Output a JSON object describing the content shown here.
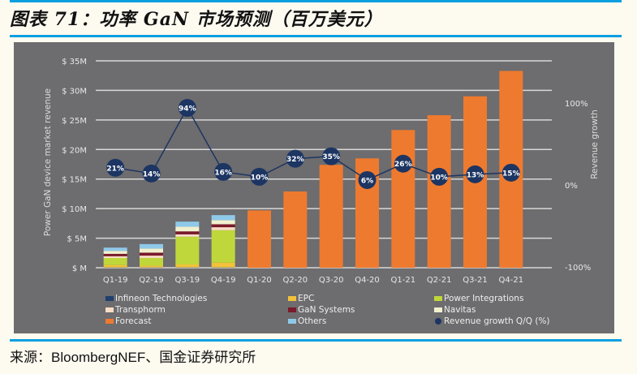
{
  "title": "图表 71：功率 GaN 市场预测（百万美元）",
  "source": "来源：BloombergNEF、国金证券研究所",
  "colors": {
    "panel": "#6d6c6e",
    "forecast": "#ee7a2f",
    "infineon": "#1f3f6e",
    "epc": "#f2c23a",
    "power_integrations": "#bfd73a",
    "transphorm": "#f9dcc6",
    "gan_systems": "#7a1a2a",
    "navitas": "#f1f0cf",
    "others": "#8fc9ea",
    "growth": "#1c3563"
  },
  "chart_data": {
    "type": "bar",
    "stacked": true,
    "ylabel": "Power GaN device market revenue",
    "y2label": "Revenue growth",
    "ylim": [
      0,
      35
    ],
    "y_ticks": [
      "$ M",
      "$ 5M",
      "$ 10M",
      "$ 15M",
      "$ 20M",
      "$ 25M",
      "$ 30M",
      "$ 35M"
    ],
    "y2lim": [
      -100,
      100
    ],
    "y2_ticks": [
      "-100%",
      "0%",
      "100%"
    ],
    "grid": true,
    "legend_position": "bottom",
    "categories": [
      "Q1-19",
      "Q2-19",
      "Q3-19",
      "Q4-19",
      "Q1-20",
      "Q2-20",
      "Q3-20",
      "Q4-20",
      "Q1-21",
      "Q2-21",
      "Q3-21",
      "Q4-21"
    ],
    "series": [
      {
        "name": "Infineon Technologies",
        "key": "infineon",
        "values": [
          0.05,
          0.05,
          0.05,
          0.05,
          0,
          0,
          0,
          0,
          0,
          0,
          0,
          0
        ]
      },
      {
        "name": "EPC",
        "key": "epc",
        "values": [
          0.4,
          0.3,
          0.5,
          0.8,
          0,
          0,
          0,
          0,
          0,
          0,
          0,
          0
        ]
      },
      {
        "name": "Power Integrations",
        "key": "power_integrations",
        "values": [
          1.2,
          1.3,
          4.7,
          5.5,
          0,
          0,
          0,
          0,
          0,
          0,
          0,
          0
        ]
      },
      {
        "name": "Transphorm",
        "key": "transphorm",
        "values": [
          0.3,
          0.4,
          0.4,
          0.5,
          0,
          0,
          0,
          0,
          0,
          0,
          0,
          0
        ]
      },
      {
        "name": "GaN Systems",
        "key": "gan_systems",
        "values": [
          0.4,
          0.5,
          0.5,
          0.5,
          0,
          0,
          0,
          0,
          0,
          0,
          0,
          0
        ]
      },
      {
        "name": "Navitas",
        "key": "navitas",
        "values": [
          0.5,
          0.7,
          0.8,
          0.7,
          0,
          0,
          0,
          0,
          0,
          0,
          0,
          0
        ]
      },
      {
        "name": "Forecast",
        "key": "forecast",
        "values": [
          0,
          0,
          0,
          0,
          9.7,
          12.9,
          17.4,
          18.5,
          23.3,
          25.8,
          29.0,
          33.3
        ]
      },
      {
        "name": "Others",
        "key": "others",
        "values": [
          0.55,
          0.75,
          0.85,
          0.85,
          0,
          0,
          0,
          0,
          0,
          0,
          0,
          0
        ]
      }
    ],
    "legend_order": [
      "infineon",
      "epc",
      "power_integrations",
      "transphorm",
      "gan_systems",
      "navitas",
      "forecast",
      "others"
    ],
    "line": {
      "name": "Revenue growth Q/Q (%)",
      "axis": "right",
      "values": [
        21,
        14,
        94,
        16,
        10,
        32,
        35,
        6,
        26,
        10,
        13,
        15
      ],
      "labels": [
        "21%",
        "14%",
        "94%",
        "16%",
        "10%",
        "32%",
        "35%",
        "6%",
        "26%",
        "10%",
        "13%",
        "15%"
      ]
    }
  }
}
